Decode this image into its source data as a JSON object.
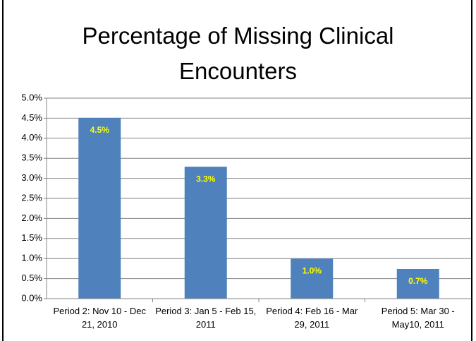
{
  "chart_data": {
    "type": "bar",
    "title": "Percentage of Missing Clinical Encounters",
    "categories": [
      "Period 2: Nov 10 - Dec 21, 2010",
      "Period 3: Jan 5 - Feb 15, 2011",
      "Period 4: Feb 16 - Mar 29, 2011",
      "Period 5: Mar 30 - May10, 2011"
    ],
    "values": [
      4.51,
      3.29,
      1.0,
      0.74
    ],
    "value_labels": [
      "4.5%",
      "3.3%",
      "1.0%",
      "0.7%"
    ],
    "color": "#4f81bd",
    "label_color": "#ffff00",
    "ylim": [
      0,
      5
    ],
    "yticks": [
      {
        "value": 0,
        "label": "0.0%"
      },
      {
        "value": 0.5,
        "label": "0.5%"
      },
      {
        "value": 1,
        "label": "1.0%"
      },
      {
        "value": 1.5,
        "label": "1.5%"
      },
      {
        "value": 2,
        "label": "2.0%"
      },
      {
        "value": 2.5,
        "label": "2.5%"
      },
      {
        "value": 3,
        "label": "3.0%"
      },
      {
        "value": 3.5,
        "label": "3.5%"
      },
      {
        "value": 4,
        "label": "4.0%"
      },
      {
        "value": 4.5,
        "label": "4.5%"
      },
      {
        "value": 5,
        "label": "5.0%"
      }
    ],
    "grid": true
  }
}
